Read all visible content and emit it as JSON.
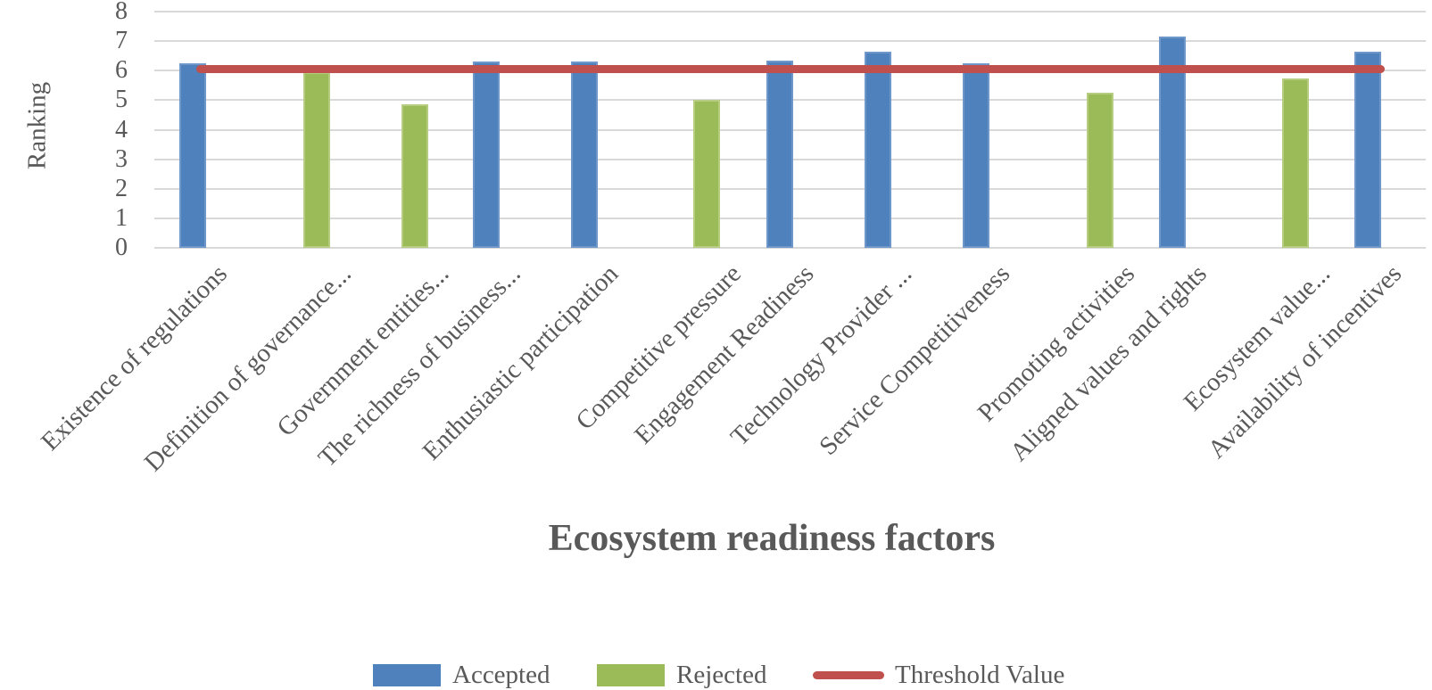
{
  "chart_data": {
    "type": "bar",
    "title": "",
    "xlabel": "Ecosystem readiness factors",
    "ylabel": "Ranking",
    "ylim": [
      0,
      8
    ],
    "yticks": [
      0,
      1,
      2,
      3,
      4,
      5,
      6,
      7,
      8
    ],
    "grid": "horizontal",
    "legend_position": "bottom-center",
    "categories": [
      "Existence of regulations",
      "Definition of governance...",
      "Government entities...",
      "The richness of business...",
      "Enthusiastic participation",
      "Competitive pressure",
      "Engagement Readiness",
      "Technology Provider ...",
      "Service Competitiveness",
      "Promoting activities",
      "Aligned values and rights",
      "Ecosystem value...",
      "Availability of incentives"
    ],
    "values": [
      6.25,
      5.95,
      4.85,
      6.3,
      6.3,
      5.0,
      6.35,
      6.65,
      6.25,
      5.25,
      7.15,
      5.75,
      6.65
    ],
    "statuses": [
      "accepted",
      "rejected",
      "rejected",
      "accepted",
      "accepted",
      "rejected",
      "accepted",
      "accepted",
      "accepted",
      "rejected",
      "accepted",
      "rejected",
      "accepted"
    ],
    "threshold": {
      "label": "Threshold Value",
      "value": 6.05
    },
    "legend": [
      {
        "label": "Accepted",
        "color": "#4F81BD",
        "marker": "rect"
      },
      {
        "label": "Rejected",
        "color": "#9BBB59",
        "marker": "rect"
      },
      {
        "label": "Threshold Value",
        "color": "#C0504D",
        "marker": "line"
      }
    ],
    "colors": {
      "accepted": "#4F81BD",
      "rejected": "#9BBB59",
      "threshold": "#C0504D",
      "gridline": "#D9D9D9",
      "axis_text": "#595959"
    }
  }
}
